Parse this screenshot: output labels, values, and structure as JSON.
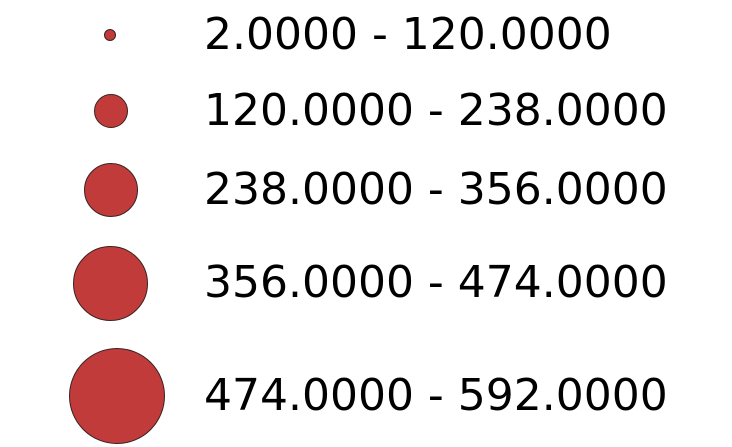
{
  "legend": {
    "symbol_color": "#c23b3b",
    "symbol_outline": "#3a2222",
    "classes": [
      {
        "label": "2.0000 - 120.0000",
        "min": 2.0,
        "max": 120.0
      },
      {
        "label": "120.0000 - 238.0000",
        "min": 120.0,
        "max": 238.0
      },
      {
        "label": "238.0000 - 356.0000",
        "min": 238.0,
        "max": 356.0
      },
      {
        "label": "356.0000 - 474.0000",
        "min": 356.0,
        "max": 474.0
      },
      {
        "label": "474.0000 - 592.0000",
        "min": 474.0,
        "max": 592.0
      }
    ]
  }
}
